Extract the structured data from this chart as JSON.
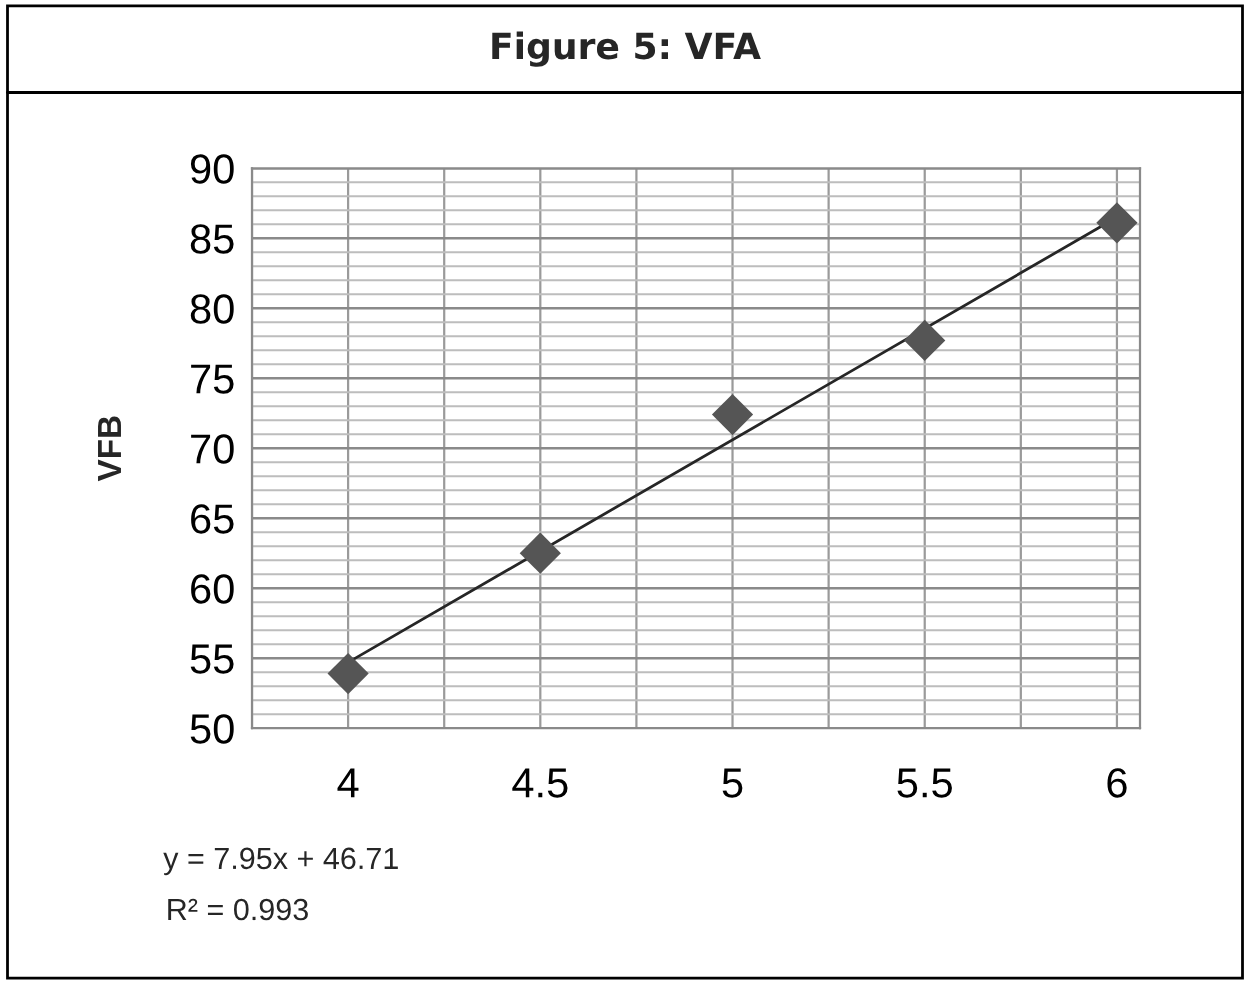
{
  "chart_data": {
    "type": "scatter",
    "title": "Figure 5: VFA",
    "ylabel": "VFB",
    "x": [
      4,
      4.5,
      5,
      5.5,
      6
    ],
    "series": [
      {
        "color": "#555555",
        "values": [
          53.9,
          62.5,
          72.4,
          77.7,
          86.1
        ],
        "marker": "diamond"
      },
      {
        "type": "line",
        "color": "#262626",
        "x": [
          4,
          6
        ],
        "values": [
          54.7,
          86.5
        ],
        "marker": "none",
        "line_style": "solid"
      }
    ],
    "xlim": [
      3.75,
      6.06
    ],
    "xticks": [
      4,
      4.5,
      5,
      5.5,
      6
    ],
    "ylim": [
      50,
      90
    ],
    "yticks": [
      50,
      55,
      60,
      65,
      70,
      75,
      80,
      85,
      90
    ],
    "grid": true,
    "annotations": [
      "y = 7.95x + 46.71",
      "R² = 0.993"
    ]
  }
}
